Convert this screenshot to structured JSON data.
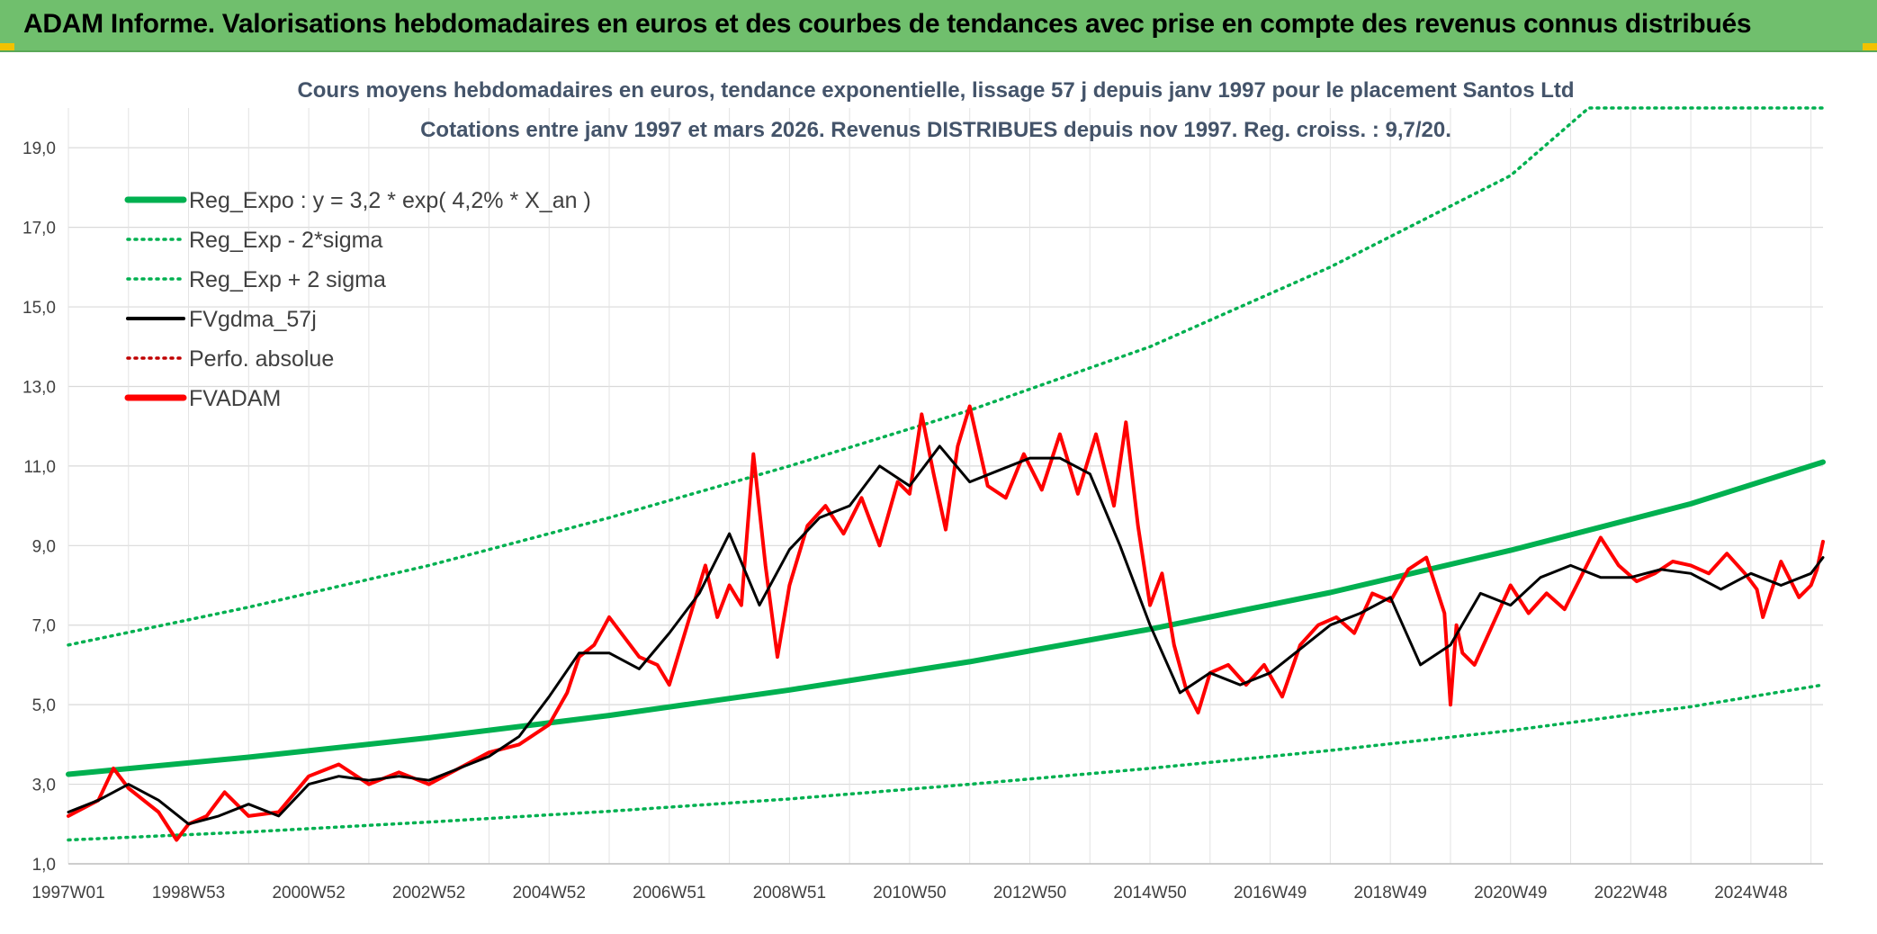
{
  "banner": {
    "title": "ADAM Informe. Valorisations hebdomadaires en euros et des courbes de tendances avec prise en compte des revenus connus distribués",
    "bg_color": "#70bf6d"
  },
  "chart_data": {
    "type": "line",
    "title": "Cours moyens hebdomadaires en euros, tendance exponentielle, lissage 57 j depuis janv 1997 pour le placement Santos Ltd",
    "subtitle": "Cotations entre janv 1997 et mars 2026. Revenus DISTRIBUES depuis nov 1997. Reg. croiss. : 9,7/20.",
    "xlabel": "",
    "ylabel": "",
    "x_range": [
      1997.0,
      2026.2
    ],
    "ylim": [
      1.0,
      20.0
    ],
    "y_ticks": [
      "1,0",
      "3,0",
      "5,0",
      "7,0",
      "9,0",
      "11,0",
      "13,0",
      "15,0",
      "17,0",
      "19,0"
    ],
    "x_tick_labels": [
      {
        "label": "1997W01",
        "x": 1997.0
      },
      {
        "label": "1998W53",
        "x": 1999.0
      },
      {
        "label": "2000W52",
        "x": 2001.0
      },
      {
        "label": "2002W52",
        "x": 2003.0
      },
      {
        "label": "2004W52",
        "x": 2005.0
      },
      {
        "label": "2006W51",
        "x": 2007.0
      },
      {
        "label": "2008W51",
        "x": 2009.0
      },
      {
        "label": "2010W50",
        "x": 2011.0
      },
      {
        "label": "2012W50",
        "x": 2013.0
      },
      {
        "label": "2014W50",
        "x": 2015.0
      },
      {
        "label": "2016W49",
        "x": 2017.0
      },
      {
        "label": "2018W49",
        "x": 2019.0
      },
      {
        "label": "2020W49",
        "x": 2021.0
      },
      {
        "label": "2022W48",
        "x": 2023.0
      },
      {
        "label": "2024W48",
        "x": 2025.0
      }
    ],
    "grid": true,
    "legend_position": "top-left",
    "series": [
      {
        "name": "Reg_Expo : y = 3,2 * exp( 4,2% *  X_an )",
        "color": "#00b050",
        "style": "solid-thick",
        "x": [
          1997.0,
          2000.0,
          2003.0,
          2006.0,
          2009.0,
          2012.0,
          2015.0,
          2018.0,
          2021.0,
          2024.0,
          2026.2
        ],
        "values": [
          3.25,
          3.68,
          4.17,
          4.73,
          5.37,
          6.08,
          6.9,
          7.82,
          8.88,
          10.05,
          11.1
        ]
      },
      {
        "name": "Reg_Exp - 2*sigma",
        "color": "#00b050",
        "style": "dotted",
        "x": [
          1997.0,
          2000.0,
          2003.0,
          2006.0,
          2009.0,
          2012.0,
          2015.0,
          2018.0,
          2021.0,
          2024.0,
          2026.2
        ],
        "values": [
          1.6,
          1.8,
          2.05,
          2.32,
          2.63,
          3.0,
          3.4,
          3.85,
          4.35,
          4.95,
          5.5
        ]
      },
      {
        "name": "Reg_Exp + 2 sigma",
        "color": "#00b050",
        "style": "dotted",
        "x": [
          1997.0,
          2000.0,
          2003.0,
          2006.0,
          2009.0,
          2012.0,
          2015.0,
          2018.0,
          2021.0,
          2022.3,
          2024.0,
          2026.2
        ],
        "values": [
          6.5,
          7.45,
          8.5,
          9.7,
          11.0,
          12.4,
          14.0,
          16.0,
          18.3,
          20.0,
          20.0,
          20.0
        ]
      },
      {
        "name": "FVgdma_57j",
        "color": "#000000",
        "style": "solid",
        "x": [
          1997.0,
          1997.5,
          1998.0,
          1998.5,
          1999.0,
          1999.5,
          2000.0,
          2000.5,
          2001.0,
          2001.5,
          2002.0,
          2002.5,
          2003.0,
          2003.5,
          2004.0,
          2004.5,
          2005.0,
          2005.5,
          2006.0,
          2006.5,
          2007.0,
          2007.5,
          2008.0,
          2008.5,
          2009.0,
          2009.5,
          2010.0,
          2010.5,
          2011.0,
          2011.5,
          2012.0,
          2012.5,
          2013.0,
          2013.5,
          2014.0,
          2014.5,
          2015.0,
          2015.5,
          2016.0,
          2016.5,
          2017.0,
          2017.5,
          2018.0,
          2018.5,
          2019.0,
          2019.5,
          2020.0,
          2020.5,
          2021.0,
          2021.5,
          2022.0,
          2022.5,
          2023.0,
          2023.5,
          2024.0,
          2024.5,
          2025.0,
          2025.5,
          2026.0,
          2026.2
        ],
        "values": [
          2.3,
          2.6,
          3.0,
          2.6,
          2.0,
          2.2,
          2.5,
          2.2,
          3.0,
          3.2,
          3.1,
          3.2,
          3.1,
          3.4,
          3.7,
          4.2,
          5.2,
          6.3,
          6.3,
          5.9,
          6.8,
          7.8,
          9.3,
          7.5,
          8.9,
          9.7,
          10.0,
          11.0,
          10.5,
          11.5,
          10.6,
          10.9,
          11.2,
          11.2,
          10.8,
          9.0,
          7.0,
          5.3,
          5.8,
          5.5,
          5.8,
          6.4,
          7.0,
          7.3,
          7.7,
          6.0,
          6.5,
          7.8,
          7.5,
          8.2,
          8.5,
          8.2,
          8.2,
          8.4,
          8.3,
          7.9,
          8.3,
          8.0,
          8.3,
          8.7
        ]
      },
      {
        "name": "Perfo. absolue",
        "color": "#c00000",
        "style": "dotted",
        "x": [],
        "values": []
      },
      {
        "name": "FVADAM",
        "color": "#ff0000",
        "style": "solid-thick",
        "x": [
          1997.0,
          1997.5,
          1997.75,
          1998.0,
          1998.5,
          1998.8,
          1999.0,
          1999.3,
          1999.6,
          2000.0,
          2000.5,
          2001.0,
          2001.5,
          2002.0,
          2002.5,
          2003.0,
          2003.5,
          2004.0,
          2004.5,
          2005.0,
          2005.3,
          2005.5,
          2005.75,
          2006.0,
          2006.5,
          2006.8,
          2007.0,
          2007.3,
          2007.6,
          2007.8,
          2008.0,
          2008.2,
          2008.4,
          2008.6,
          2008.8,
          2009.0,
          2009.3,
          2009.6,
          2009.9,
          2010.2,
          2010.5,
          2010.8,
          2011.0,
          2011.2,
          2011.4,
          2011.6,
          2011.8,
          2012.0,
          2012.3,
          2012.6,
          2012.9,
          2013.2,
          2013.5,
          2013.8,
          2014.1,
          2014.4,
          2014.6,
          2014.8,
          2015.0,
          2015.2,
          2015.4,
          2015.6,
          2015.8,
          2016.0,
          2016.3,
          2016.6,
          2016.9,
          2017.2,
          2017.5,
          2017.8,
          2018.1,
          2018.4,
          2018.7,
          2019.0,
          2019.3,
          2019.6,
          2019.9,
          2020.0,
          2020.1,
          2020.2,
          2020.4,
          2020.7,
          2021.0,
          2021.3,
          2021.6,
          2021.9,
          2022.2,
          2022.5,
          2022.8,
          2023.1,
          2023.4,
          2023.7,
          2024.0,
          2024.3,
          2024.6,
          2024.9,
          2025.1,
          2025.2,
          2025.5,
          2025.8,
          2026.0,
          2026.1,
          2026.2
        ],
        "values": [
          2.2,
          2.6,
          3.4,
          2.9,
          2.3,
          1.6,
          2.0,
          2.2,
          2.8,
          2.2,
          2.3,
          3.2,
          3.5,
          3.0,
          3.3,
          3.0,
          3.4,
          3.8,
          4.0,
          4.5,
          5.3,
          6.2,
          6.5,
          7.2,
          6.2,
          6.0,
          5.5,
          7.0,
          8.5,
          7.2,
          8.0,
          7.5,
          11.3,
          8.5,
          6.2,
          8.0,
          9.5,
          10.0,
          9.3,
          10.2,
          9.0,
          10.6,
          10.3,
          12.3,
          10.8,
          9.4,
          11.5,
          12.5,
          10.5,
          10.2,
          11.3,
          10.4,
          11.8,
          10.3,
          11.8,
          10.0,
          12.1,
          9.5,
          7.5,
          8.3,
          6.5,
          5.4,
          4.8,
          5.8,
          6.0,
          5.5,
          6.0,
          5.2,
          6.5,
          7.0,
          7.2,
          6.8,
          7.8,
          7.6,
          8.4,
          8.7,
          7.3,
          5.0,
          7.0,
          6.3,
          6.0,
          7.0,
          8.0,
          7.3,
          7.8,
          7.4,
          8.3,
          9.2,
          8.5,
          8.1,
          8.3,
          8.6,
          8.5,
          8.3,
          8.8,
          8.3,
          7.9,
          7.2,
          8.6,
          7.7,
          8.0,
          8.4,
          9.1
        ]
      }
    ]
  }
}
